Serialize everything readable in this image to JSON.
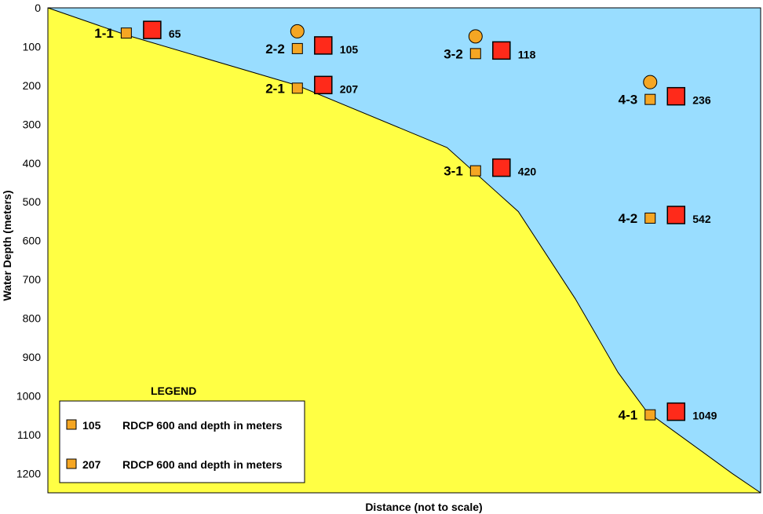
{
  "chart_data": {
    "type": "scatter",
    "title": "",
    "ylabel": "Water Depth (meters)",
    "xlabel": "Distance (not to scale)",
    "ylim": [
      0,
      1250
    ],
    "y_ticks": [
      0,
      100,
      200,
      300,
      400,
      500,
      600,
      700,
      800,
      900,
      1000,
      1100,
      1200
    ],
    "y_inverted": true,
    "colors": {
      "water": "#99ddff",
      "seabed": "#ffff44",
      "small_instrument": "#f5a623",
      "large_instrument": "#ff2a1a",
      "buoy": "#f5a623"
    },
    "seabed_profile": [
      {
        "x": 0.0,
        "depth": 0
      },
      {
        "x": 0.11,
        "depth": 70
      },
      {
        "x": 0.35,
        "depth": 200
      },
      {
        "x": 0.56,
        "depth": 360
      },
      {
        "x": 0.66,
        "depth": 525
      },
      {
        "x": 0.74,
        "depth": 750
      },
      {
        "x": 0.8,
        "depth": 940
      },
      {
        "x": 0.84,
        "depth": 1040
      },
      {
        "x": 0.9,
        "depth": 1120
      },
      {
        "x": 0.96,
        "depth": 1200
      },
      {
        "x": 1.0,
        "depth": 1250
      }
    ],
    "stations": [
      {
        "id": "1-1",
        "x": 0.11,
        "depth": 65,
        "depth_label": "65",
        "buoy": false
      },
      {
        "id": "2-2",
        "x": 0.35,
        "depth": 105,
        "depth_label": "105",
        "buoy": true
      },
      {
        "id": "2-1",
        "x": 0.35,
        "depth": 207,
        "depth_label": "207",
        "buoy": false
      },
      {
        "id": "3-2",
        "x": 0.6,
        "depth": 118,
        "depth_label": "118",
        "buoy": true
      },
      {
        "id": "3-1",
        "x": 0.6,
        "depth": 420,
        "depth_label": "420",
        "buoy": false
      },
      {
        "id": "4-3",
        "x": 0.845,
        "depth": 236,
        "depth_label": "236",
        "buoy": true
      },
      {
        "id": "4-2",
        "x": 0.845,
        "depth": 542,
        "depth_label": "542",
        "buoy": false
      },
      {
        "id": "4-1",
        "x": 0.845,
        "depth": 1049,
        "depth_label": "1049",
        "buoy": false
      }
    ],
    "legend": {
      "title": "LEGEND",
      "placement": "bottom-left",
      "entries": [
        {
          "value": "105",
          "text": "RDCP 600 and depth in meters"
        },
        {
          "value": "207",
          "text": "RDCP 600 and depth in meters"
        }
      ]
    }
  }
}
